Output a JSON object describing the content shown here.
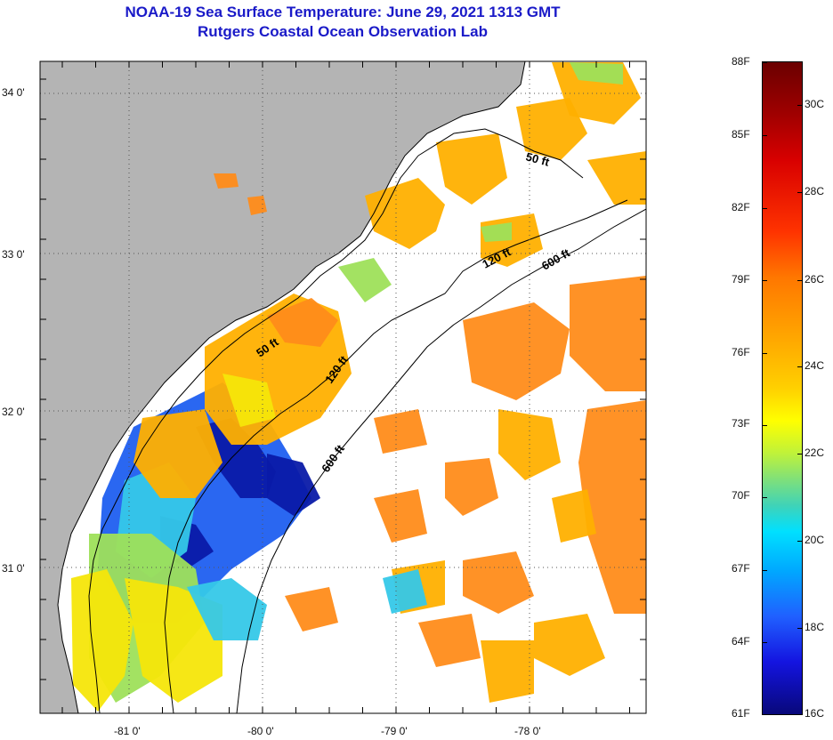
{
  "title": {
    "line1": "NOAA-19 Sea Surface Temperature:  June 29, 2021 1313 GMT",
    "line2": "Rutgers Coastal Ocean Observation Lab"
  },
  "map": {
    "lat_labels": [
      "34 0'",
      "33 0'",
      "32 0'",
      "31 0'"
    ],
    "lon_labels": [
      "-81 0'",
      "-80 0'",
      "-79 0'",
      "-78 0'"
    ],
    "depth_contours": [
      "50 ft",
      "120 ft",
      "600 ft",
      "50 ft",
      "120 ft",
      "600 ft"
    ],
    "colors": {
      "land": "#b4b4b4",
      "cloud": "#ffffff",
      "warm": "#ff8c1a",
      "orange": "#ffb000",
      "yellow": "#f5e60a",
      "green": "#9ee05a",
      "cyan": "#35c8e8",
      "blue": "#1f5ff0",
      "navy": "#0a1aa8"
    }
  },
  "colorbar": {
    "fahrenheit": [
      "88F",
      "85F",
      "82F",
      "79F",
      "76F",
      "73F",
      "70F",
      "67F",
      "64F",
      "61F"
    ],
    "celsius": [
      "30C",
      "28C",
      "26C",
      "24C",
      "22C",
      "20C",
      "18C",
      "16C"
    ]
  }
}
